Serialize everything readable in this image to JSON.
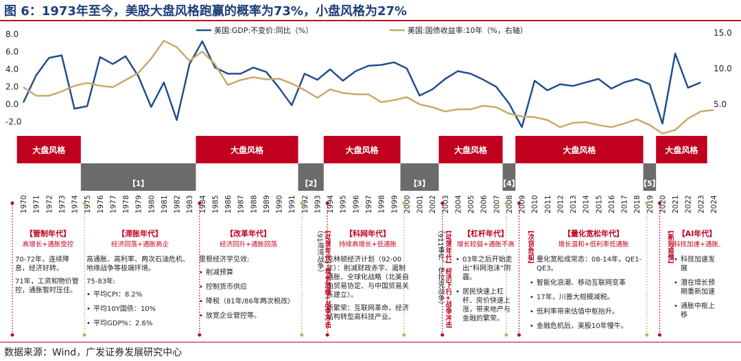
{
  "title": "图 6：1973年至今，美股大盘风格跑赢的概率为73%，小盘风格为27%",
  "source": "数据来源：Wind，广发证券发展研究中心",
  "colors": {
    "gdp": "#1f4e8c",
    "bond": "#c9a86a",
    "red": "#c0001e",
    "gray": "#6b6b6b"
  },
  "chart_data": {
    "type": "line",
    "x_start": 1970,
    "x_end": 2024,
    "y_left": {
      "ticks": [
        "8.0",
        "6.0",
        "4.0",
        "2.0",
        "0.0",
        "-2.0"
      ],
      "range": [
        -2,
        8
      ]
    },
    "y_right": {
      "ticks": [
        "15.0",
        "10.0",
        "5.0"
      ],
      "range": [
        2.5,
        15
      ],
      "label": "右轴"
    },
    "series": [
      {
        "name": "美国:GDP:不变价:同比（%）",
        "axis": "left",
        "points": [
          [
            1970,
            0.2
          ],
          [
            1971,
            3.3
          ],
          [
            1972,
            5.3
          ],
          [
            1973,
            5.6
          ],
          [
            1974,
            -0.5
          ],
          [
            1975,
            -0.2
          ],
          [
            1976,
            5.4
          ],
          [
            1977,
            4.6
          ],
          [
            1978,
            5.5
          ],
          [
            1979,
            3.2
          ],
          [
            1980,
            -0.3
          ],
          [
            1981,
            2.5
          ],
          [
            1982,
            -1.8
          ],
          [
            1983,
            4.6
          ],
          [
            1984,
            7.2
          ],
          [
            1985,
            4.2
          ],
          [
            1986,
            3.5
          ],
          [
            1987,
            3.5
          ],
          [
            1988,
            4.2
          ],
          [
            1989,
            3.7
          ],
          [
            1990,
            1.9
          ],
          [
            1991,
            -0.1
          ],
          [
            1992,
            3.5
          ],
          [
            1993,
            2.8
          ],
          [
            1994,
            4.0
          ],
          [
            1995,
            2.7
          ],
          [
            1996,
            3.8
          ],
          [
            1997,
            4.4
          ],
          [
            1998,
            4.5
          ],
          [
            1999,
            4.8
          ],
          [
            2000,
            4.1
          ],
          [
            2001,
            1.0
          ],
          [
            2002,
            1.7
          ],
          [
            2003,
            2.9
          ],
          [
            2004,
            3.8
          ],
          [
            2005,
            3.5
          ],
          [
            2006,
            2.8
          ],
          [
            2007,
            2.0
          ],
          [
            2008,
            0.1
          ],
          [
            2009,
            -2.6
          ],
          [
            2010,
            2.7
          ],
          [
            2011,
            1.6
          ],
          [
            2012,
            2.3
          ],
          [
            2013,
            2.1
          ],
          [
            2014,
            2.5
          ],
          [
            2015,
            2.9
          ],
          [
            2016,
            1.8
          ],
          [
            2017,
            2.5
          ],
          [
            2018,
            2.9
          ],
          [
            2019,
            2.3
          ],
          [
            2020,
            -2.2
          ],
          [
            2021,
            5.8
          ],
          [
            2022,
            1.9
          ],
          [
            2023,
            2.5
          ]
        ]
      },
      {
        "name": "美国:国债收益率:10年（%，右轴）",
        "axis": "right",
        "points": [
          [
            1970,
            7.4
          ],
          [
            1971,
            6.2
          ],
          [
            1972,
            6.2
          ],
          [
            1973,
            6.8
          ],
          [
            1974,
            7.6
          ],
          [
            1975,
            8.0
          ],
          [
            1976,
            7.6
          ],
          [
            1977,
            7.4
          ],
          [
            1978,
            8.4
          ],
          [
            1979,
            9.4
          ],
          [
            1980,
            11.4
          ],
          [
            1981,
            13.9
          ],
          [
            1982,
            13.0
          ],
          [
            1983,
            11.1
          ],
          [
            1984,
            12.4
          ],
          [
            1985,
            10.6
          ],
          [
            1986,
            7.7
          ],
          [
            1987,
            8.4
          ],
          [
            1988,
            8.8
          ],
          [
            1989,
            8.5
          ],
          [
            1990,
            8.6
          ],
          [
            1991,
            7.9
          ],
          [
            1992,
            7.0
          ],
          [
            1993,
            5.9
          ],
          [
            1994,
            7.1
          ],
          [
            1995,
            6.6
          ],
          [
            1996,
            6.4
          ],
          [
            1997,
            6.4
          ],
          [
            1998,
            5.3
          ],
          [
            1999,
            5.6
          ],
          [
            2000,
            6.0
          ],
          [
            2001,
            5.0
          ],
          [
            2002,
            4.6
          ],
          [
            2003,
            4.0
          ],
          [
            2004,
            4.3
          ],
          [
            2005,
            4.3
          ],
          [
            2006,
            4.8
          ],
          [
            2007,
            4.6
          ],
          [
            2008,
            3.7
          ],
          [
            2009,
            3.3
          ],
          [
            2010,
            3.2
          ],
          [
            2011,
            2.8
          ],
          [
            2012,
            1.8
          ],
          [
            2013,
            2.4
          ],
          [
            2014,
            2.5
          ],
          [
            2015,
            2.1
          ],
          [
            2016,
            1.8
          ],
          [
            2017,
            2.3
          ],
          [
            2018,
            2.9
          ],
          [
            2019,
            2.1
          ],
          [
            2020,
            0.9
          ],
          [
            2021,
            1.4
          ],
          [
            2022,
            3.0
          ],
          [
            2023,
            4.0
          ],
          [
            2024,
            4.2
          ]
        ]
      }
    ]
  },
  "timeline": {
    "bands": [
      {
        "kind": "big",
        "from": 1969.5,
        "to": 1974.5,
        "label": "大盘风格"
      },
      {
        "kind": "small",
        "from": 1974.5,
        "to": 1983.5,
        "label": "【1】"
      },
      {
        "kind": "big",
        "from": 1983.5,
        "to": 1991.5,
        "label": "大盘风格"
      },
      {
        "kind": "small",
        "from": 1991.5,
        "to": 1993.5,
        "label": "【2】"
      },
      {
        "kind": "big",
        "from": 1993.5,
        "to": 1999.5,
        "label": "大盘风格"
      },
      {
        "kind": "small",
        "from": 1999.5,
        "to": 2002.5,
        "label": "【3】"
      },
      {
        "kind": "big",
        "from": 2002.5,
        "to": 2007.5,
        "label": "大盘风格"
      },
      {
        "kind": "small",
        "from": 2007.5,
        "to": 2008.5,
        "label": "【4】"
      },
      {
        "kind": "big",
        "from": 2008.5,
        "to": 2018.5,
        "label": "大盘风格"
      },
      {
        "kind": "small",
        "from": 2018.5,
        "to": 2019.5,
        "label": "【5】"
      },
      {
        "kind": "big",
        "from": 2019.5,
        "to": 2023.5,
        "label": "大盘风格"
      }
    ],
    "dividers": [
      1974.5,
      1983.5,
      1991.5,
      1993.5,
      1999.5,
      2002.5,
      2007.5,
      2008.5,
      2018.5,
      2019.5
    ]
  },
  "phases": [
    {
      "title": "【管制年代】",
      "sub": "高增长+通胀受控",
      "paras": [
        "70-72年，连续降息，经济好转。",
        "71年，工资和物价管控，通胀暂时压住。"
      ]
    },
    {
      "title": "【滞胀年代】",
      "sub": "经济回落+通胀高企",
      "paras": [
        "高通胀、高利率、两次石油危机、地缘战争等极端环境。",
        "75-83年:"
      ],
      "bullets": [
        "平均CPI：8.2%",
        "平均10Y国债：10%",
        "平均GDP%：2.6%"
      ]
    },
    {
      "title": "【改革年代】",
      "sub": "经济回升+通胀回落",
      "paras": [
        "里根经济学见效:"
      ],
      "bullets": [
        "削减预算",
        "控制货币供应",
        "降税（81年/86年两次税改）",
        "放宽企业管控等。"
      ]
    },
    {
      "title": "【科网年代】",
      "sub": "持续高增长+低通胀",
      "paras": [
        "克林顿经济计划（92-00年）：削减财政赤字、遏制通胀、全球化战略（北美自由贸易协定、与中国贸易关系建立）。",
        "新繁荣：互联网革命，经济结构转型高科技产业。"
      ]
    },
    {
      "title": "【杠杆年代】",
      "sub": "增长较弱+通胀不高",
      "bullets": [
        "03年之后开始走出“科网泡沫”阴霾。",
        "居民快速上杠杆、房价快速上涨，带来地产与金融的繁荣。"
      ]
    },
    {
      "title": "【量化宽松年代】",
      "sub": "增长温和+低利率低通胀",
      "bullets": [
        "量化宽松成常态：08-14年，QE1-QE3。",
        "智能化浪潮、移动互联网变革",
        "17年，川普大规模减税。",
        "低利率带来估值中枢抬升。",
        "金融危机后，美股10年慢牛。"
      ]
    },
    {
      "title": "【AI年代】",
      "sub": "科技加速+通胀上行",
      "bullets": [
        "科技加速发展",
        "潜在增长预期重新加速",
        "通胀中枢上移"
      ]
    }
  ],
  "vertical_notes": [
    {
      "title": "【动荡年代】",
      "sub": "增长放缓+战争冲击",
      "body": "（91海湾战争）"
    },
    {
      "title": "【动荡年代】",
      "sub": "经济下行+战争冲击",
      "body": "（911事件、伊拉克战争）"
    },
    {
      "title": "【次贷危机】",
      "sub": "",
      "body": ""
    },
    {
      "title": "【新冠疫情】",
      "sub": "",
      "body": ""
    }
  ]
}
